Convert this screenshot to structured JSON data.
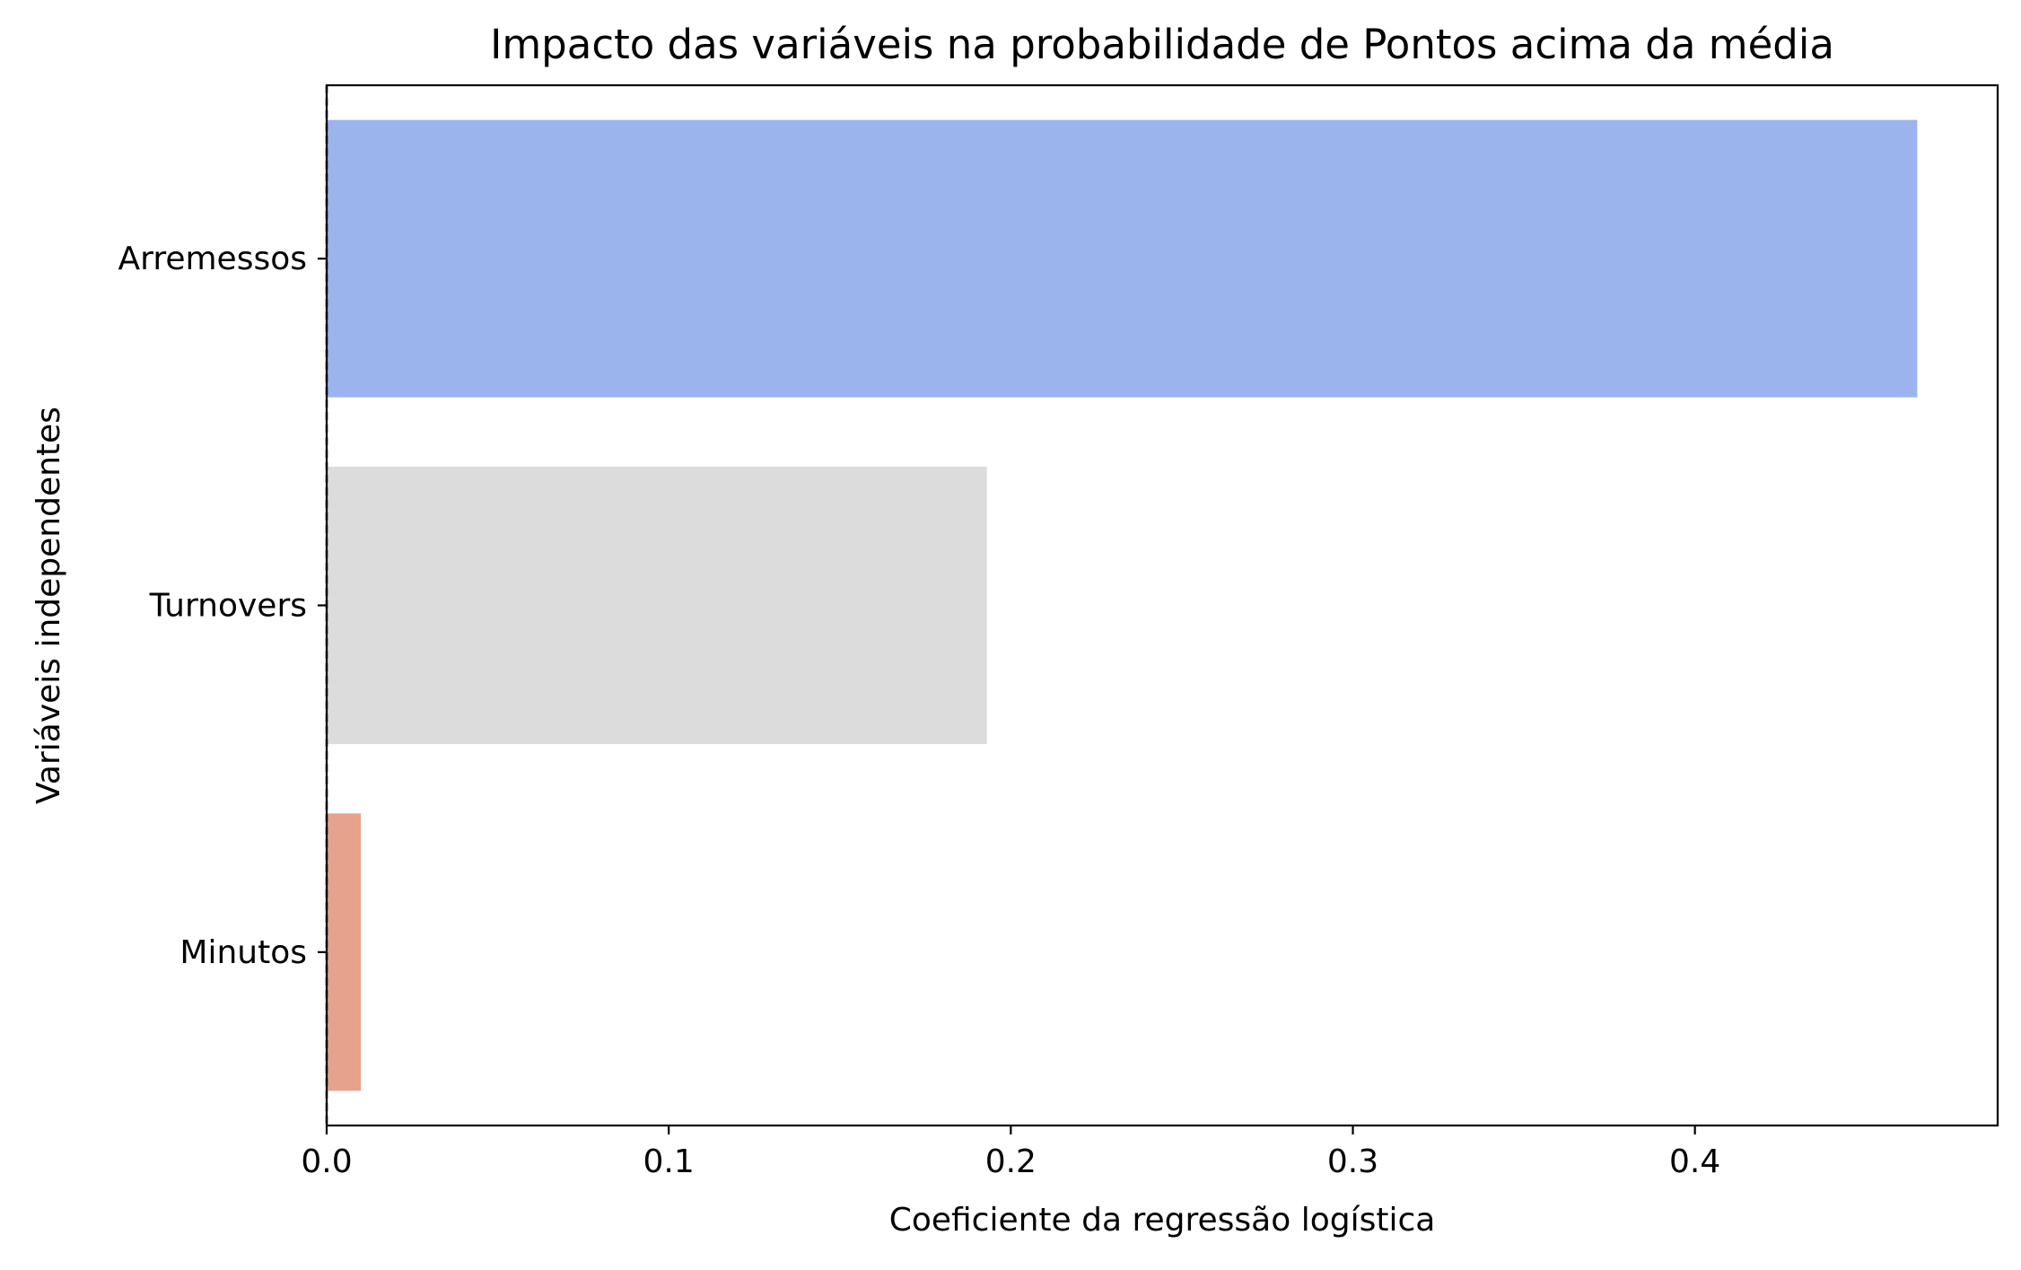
{
  "chart_data": {
    "type": "bar",
    "orientation": "horizontal",
    "title": "Impacto das variáveis na probabilidade de Pontos acima da média",
    "xlabel": "Coeficiente da regressão logística",
    "ylabel": "Variáveis independentes",
    "categories": [
      "Arremessos",
      "Turnovers",
      "Minutos"
    ],
    "values": [
      0.465,
      0.193,
      0.01
    ],
    "colors": [
      "#9bb4ee",
      "#dcdcdc",
      "#e6a28b"
    ],
    "xlim": [
      0,
      0.4885
    ],
    "xticks": [
      0.0,
      0.1,
      0.2,
      0.3,
      0.4
    ],
    "xtick_labels": [
      "0.0",
      "0.1",
      "0.2",
      "0.3",
      "0.4"
    ],
    "grid": false,
    "zero_line": "dashed"
  }
}
